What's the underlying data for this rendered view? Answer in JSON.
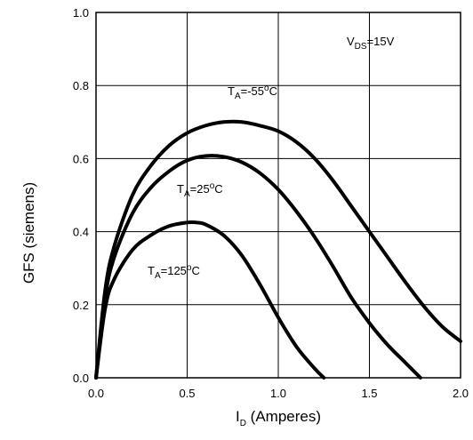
{
  "chart_data": {
    "type": "line",
    "xlabel_main": "I",
    "xlabel_sub": "D",
    "xlabel_rest": " (Amperes)",
    "ylabel": "GFS (siemens)",
    "xlim": [
      0,
      2.0
    ],
    "ylim": [
      0,
      1.0
    ],
    "x_ticks": [
      0,
      0.5,
      1.0,
      1.5,
      2.0
    ],
    "x_tick_labels": [
      "0.0",
      "0.5",
      "1.0",
      "1.5",
      "2.0"
    ],
    "y_ticks": [
      0,
      0.2,
      0.4,
      0.6,
      0.8,
      1.0
    ],
    "y_tick_labels": [
      "0.0",
      "0.2",
      "0.4",
      "0.6",
      "0.8",
      "1.0"
    ],
    "grid": true,
    "condition": {
      "main": "V",
      "sub": "DS",
      "rest": "=15V"
    },
    "series": [
      {
        "label_main": "T",
        "label_sub": "A",
        "label_rest": "=-55",
        "label_sup": "o",
        "label_end": "C",
        "x": [
          0,
          0.05,
          0.1,
          0.2,
          0.3,
          0.4,
          0.5,
          0.6,
          0.7,
          0.8,
          0.9,
          1.0,
          1.1,
          1.2,
          1.3,
          1.4,
          1.5,
          1.6,
          1.7,
          1.8,
          1.9,
          2.0
        ],
        "y": [
          0,
          0.24,
          0.36,
          0.5,
          0.58,
          0.635,
          0.67,
          0.69,
          0.7,
          0.7,
          0.69,
          0.675,
          0.645,
          0.6,
          0.54,
          0.47,
          0.4,
          0.33,
          0.26,
          0.195,
          0.14,
          0.1
        ]
      },
      {
        "label_main": "T",
        "label_sub": "A",
        "label_rest": "=25",
        "label_sup": "o",
        "label_end": "C",
        "x": [
          0,
          0.05,
          0.1,
          0.2,
          0.3,
          0.4,
          0.5,
          0.6,
          0.7,
          0.8,
          0.9,
          1.0,
          1.1,
          1.2,
          1.3,
          1.4,
          1.5,
          1.6,
          1.7,
          1.78
        ],
        "y": [
          0,
          0.22,
          0.33,
          0.45,
          0.52,
          0.565,
          0.595,
          0.607,
          0.605,
          0.59,
          0.56,
          0.515,
          0.455,
          0.385,
          0.305,
          0.22,
          0.15,
          0.09,
          0.04,
          0.0
        ]
      },
      {
        "label_main": "T",
        "label_sub": "A",
        "label_rest": "=125",
        "label_sup": "o",
        "label_end": "C",
        "x": [
          0,
          0.05,
          0.1,
          0.2,
          0.3,
          0.4,
          0.5,
          0.55,
          0.6,
          0.7,
          0.8,
          0.9,
          1.0,
          1.1,
          1.2,
          1.25
        ],
        "y": [
          0,
          0.19,
          0.27,
          0.35,
          0.39,
          0.415,
          0.425,
          0.425,
          0.42,
          0.39,
          0.335,
          0.255,
          0.165,
          0.085,
          0.025,
          0.0
        ]
      }
    ]
  }
}
